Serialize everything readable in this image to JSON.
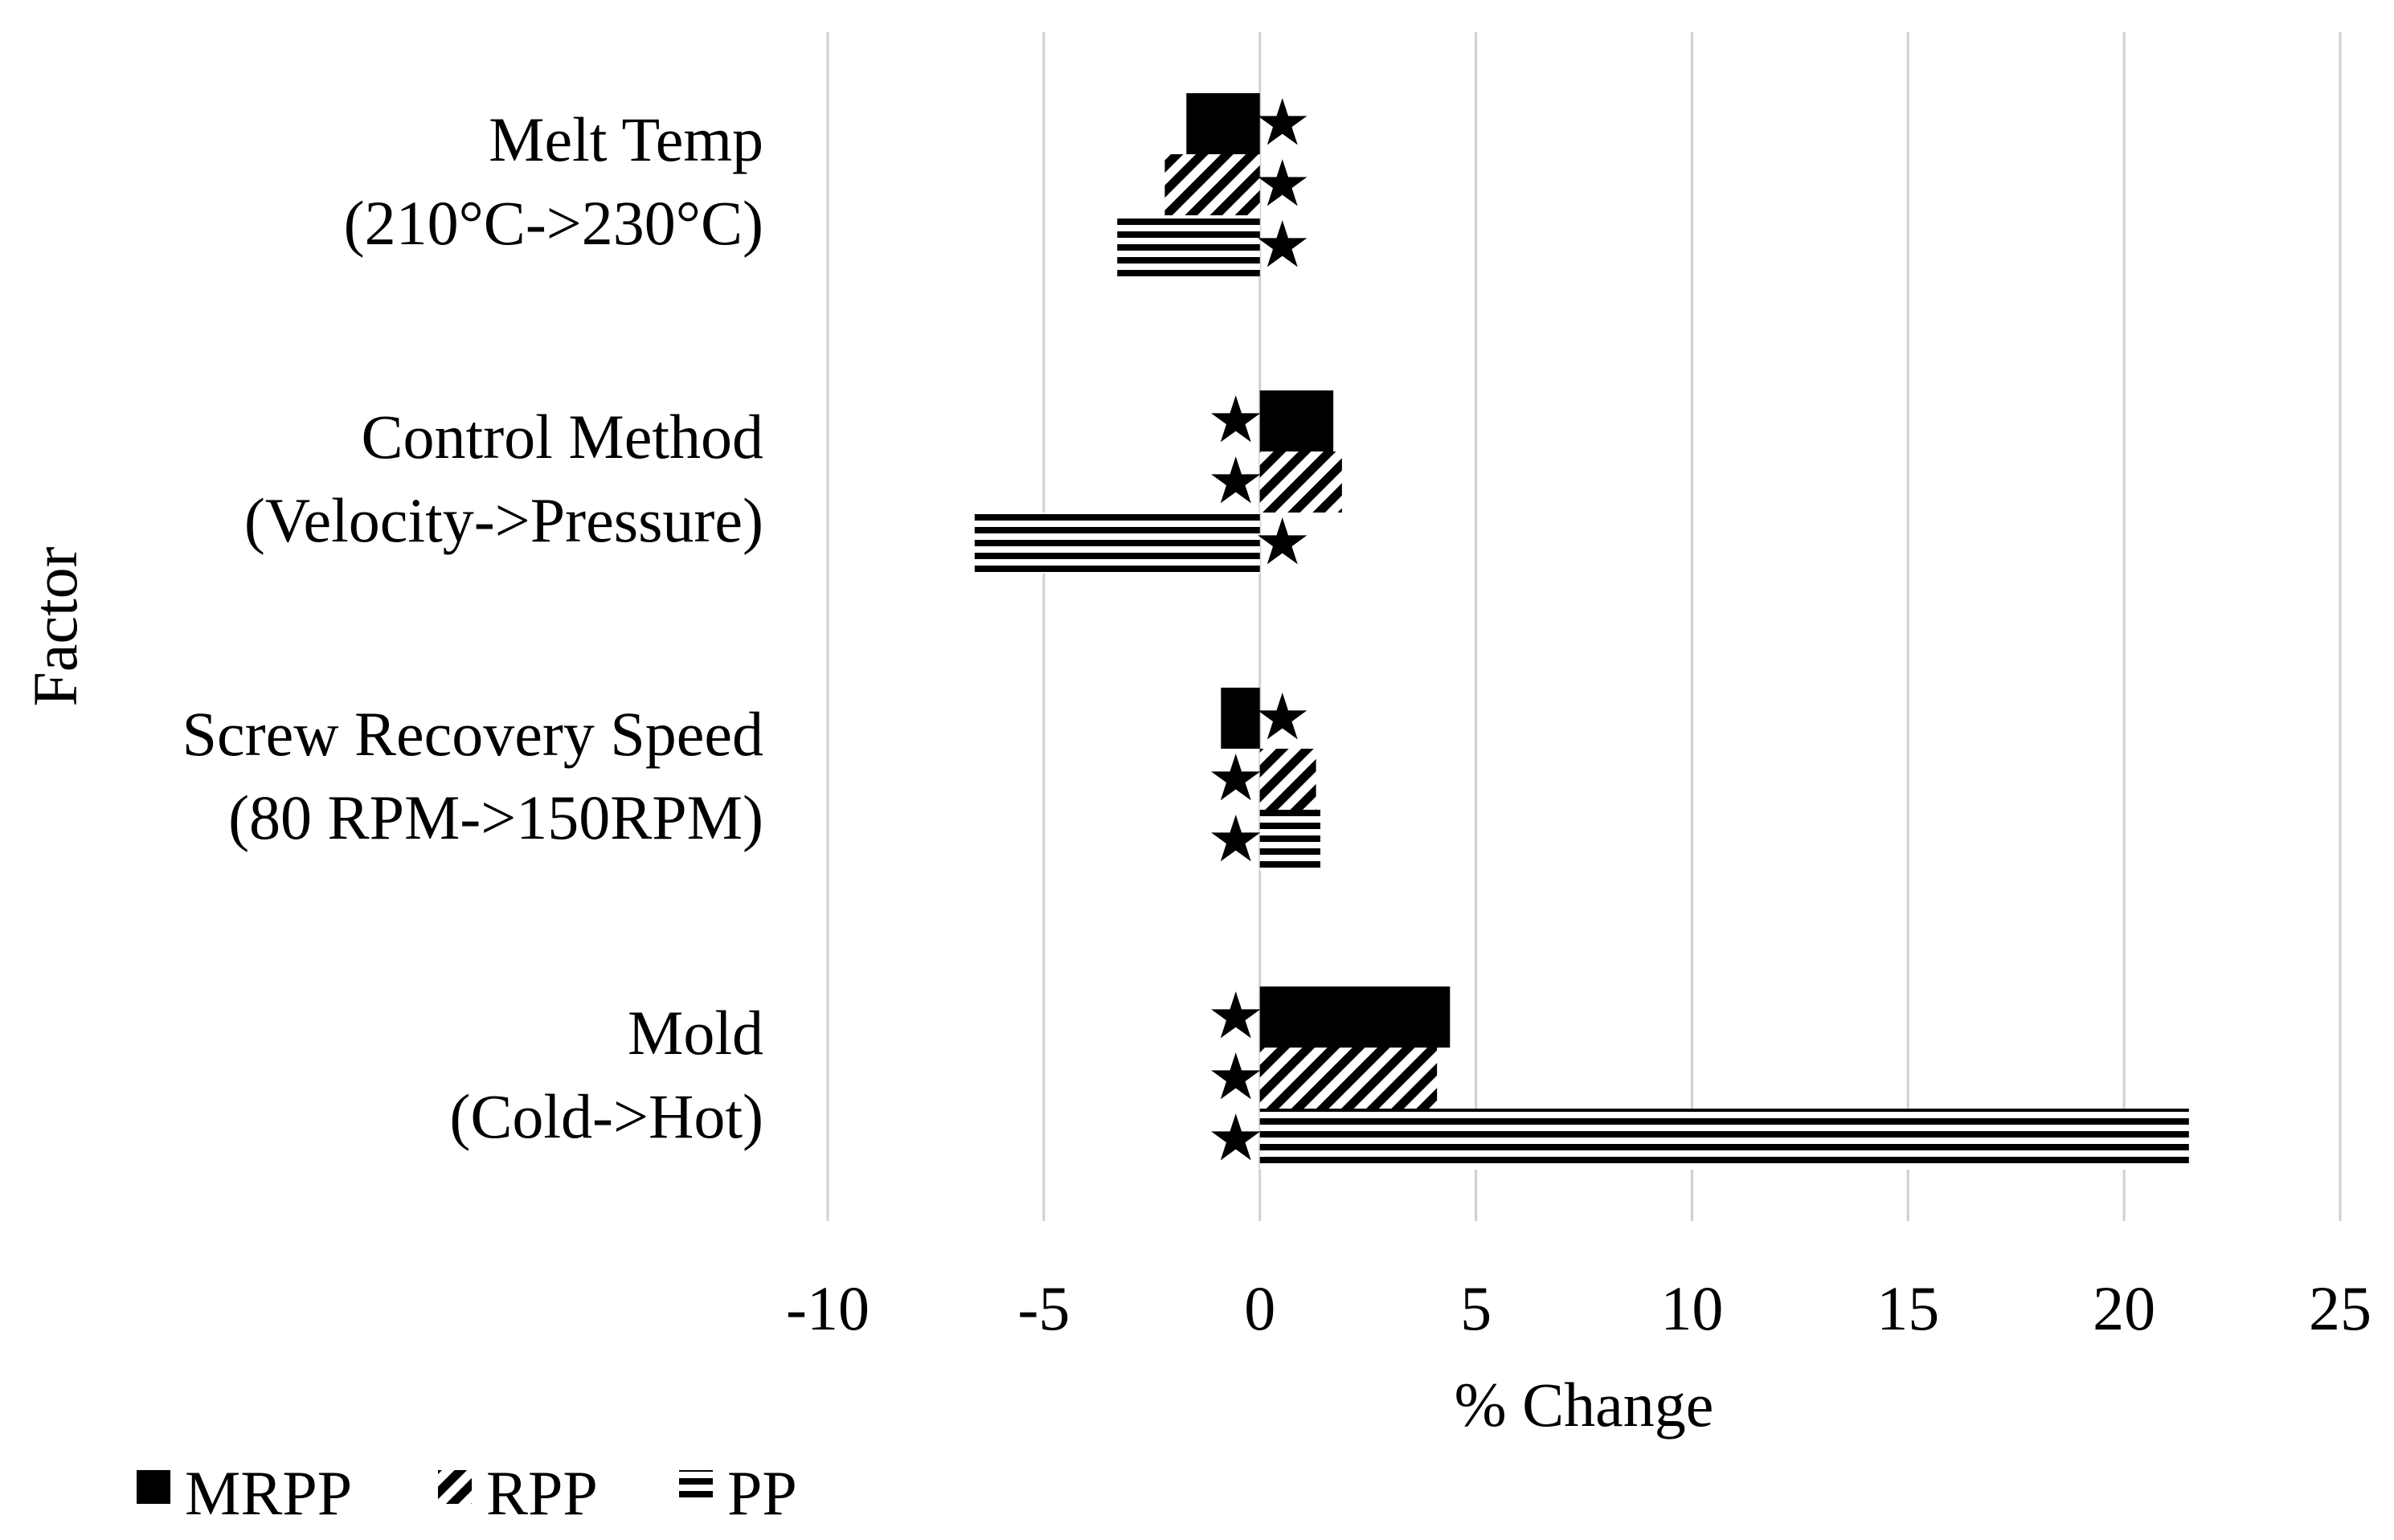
{
  "chart_data": {
    "type": "bar",
    "orientation": "horizontal",
    "title": "",
    "xlabel": "% Change",
    "ylabel": "Factor",
    "xlim": [
      -10,
      25
    ],
    "xticks": [
      -10,
      -5,
      0,
      5,
      10,
      15,
      20,
      25
    ],
    "grid": "vertical",
    "legend_position": "bottom-left",
    "categories": [
      {
        "line1": "Melt Temp",
        "line2": "(210°C->230°C)"
      },
      {
        "line1": "Control Method",
        "line2": "(Velocity->Pressure)"
      },
      {
        "line1": "Screw Recovery Speed",
        "line2": "(80 RPM->150RPM)"
      },
      {
        "line1": "Mold",
        "line2": "(Cold->Hot)"
      }
    ],
    "series": [
      {
        "name": "MRPP",
        "pattern": "solid",
        "values": [
          -1.7,
          1.7,
          -0.9,
          4.4
        ],
        "significant": [
          true,
          true,
          true,
          true
        ]
      },
      {
        "name": "RPP",
        "pattern": "diagonal",
        "values": [
          -2.2,
          1.9,
          1.3,
          4.1
        ],
        "significant": [
          true,
          true,
          true,
          true
        ]
      },
      {
        "name": "PP",
        "pattern": "horizontal-lines",
        "values": [
          -3.3,
          -6.6,
          1.4,
          21.5
        ],
        "significant": [
          true,
          true,
          true,
          true
        ]
      }
    ],
    "significance_marker": "★",
    "colors": {
      "ink": "#000000",
      "grid": "#d0d0d0",
      "background": "#ffffff"
    }
  }
}
